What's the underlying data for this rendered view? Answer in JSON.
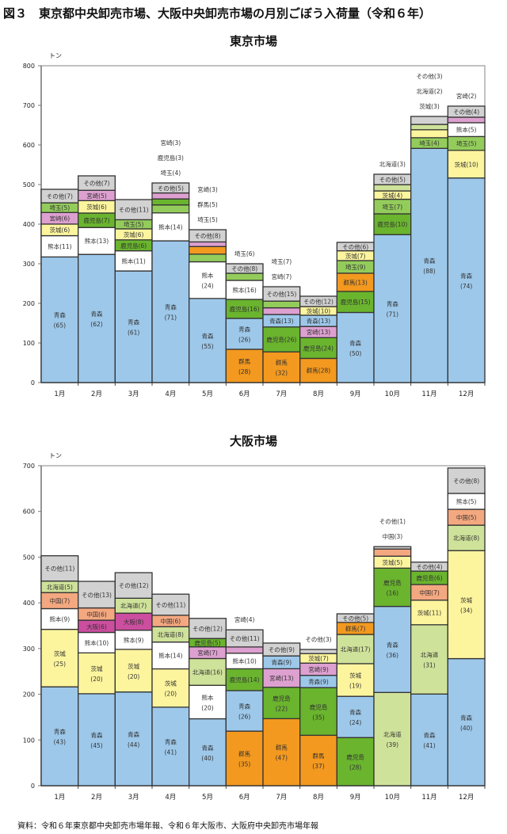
{
  "figure_title": "図３　東京都中央卸売市場、大阪中央卸売市場の月別ごぼう入荷量（令和６年）",
  "footer": "資料：令和６年東京都中央卸売市場年報、令和６年大阪市、大阪府中央卸売市場年報",
  "colors": {
    "青森": "#9dc8ea",
    "熊本": "#ffffff",
    "茨城": "#fdf59e",
    "宮崎": "#dda0d0",
    "埼玉": "#93cc5b",
    "鹿児島": "#6ab42e",
    "群馬": "#f3991f",
    "その他": "#d2d2d2",
    "北海道": "#cfe29a",
    "中国": "#f4a880",
    "大阪": "#cb4e9f"
  },
  "chart_data": [
    {
      "type": "bar",
      "stacked": true,
      "title": "東京市場",
      "ylabel": "トン",
      "ylim": [
        0,
        800
      ],
      "yticks": [
        0,
        100,
        200,
        300,
        400,
        500,
        600,
        700,
        800
      ],
      "grid": false,
      "note": "括弧内は構成比（％）",
      "categories": [
        "1月",
        "2月",
        "3月",
        "4月",
        "5月",
        "6月",
        "7月",
        "8月",
        "9月",
        "10月",
        "11月",
        "12月"
      ],
      "totals": [
        488,
        522,
        462,
        504,
        386,
        300,
        242,
        218,
        354,
        526,
        672,
        698
      ],
      "stacks": [
        [
          [
            "青森",
            65
          ],
          [
            "熊本",
            11
          ],
          [
            "茨城",
            6
          ],
          [
            "宮崎",
            6
          ],
          [
            "埼玉",
            5
          ],
          [
            "その他",
            7
          ]
        ],
        [
          [
            "青森",
            62
          ],
          [
            "熊本",
            13
          ],
          [
            "鹿児島",
            7
          ],
          [
            "茨城",
            6
          ],
          [
            "宮崎",
            5
          ],
          [
            "その他",
            7
          ]
        ],
        [
          [
            "青森",
            61
          ],
          [
            "熊本",
            11
          ],
          [
            "鹿児島",
            6
          ],
          [
            "茨城",
            6
          ],
          [
            "埼玉",
            5
          ],
          [
            "その他",
            11
          ]
        ],
        [
          [
            "青森",
            71
          ],
          [
            "熊本",
            14
          ],
          [
            "埼玉",
            4
          ],
          [
            "鹿児島",
            3
          ],
          [
            "宮崎",
            3
          ],
          [
            "その他",
            5
          ]
        ],
        [
          [
            "青森",
            55
          ],
          [
            "熊本",
            24
          ],
          [
            "埼玉",
            5
          ],
          [
            "群馬",
            5
          ],
          [
            "宮崎",
            3
          ],
          [
            "その他",
            8
          ]
        ],
        [
          [
            "群馬",
            28
          ],
          [
            "青森",
            26
          ],
          [
            "鹿児島",
            16
          ],
          [
            "熊本",
            16
          ],
          [
            "埼玉",
            6
          ],
          [
            "その他",
            8
          ]
        ],
        [
          [
            "群馬",
            32
          ],
          [
            "鹿児島",
            26
          ],
          [
            "青森",
            13
          ],
          [
            "宮崎",
            7
          ],
          [
            "埼玉",
            7
          ],
          [
            "その他",
            15
          ]
        ],
        [
          [
            "群馬",
            28
          ],
          [
            "鹿児島",
            24
          ],
          [
            "宮崎",
            13
          ],
          [
            "青森",
            13
          ],
          [
            "茨城",
            10
          ],
          [
            "その他",
            12
          ]
        ],
        [
          [
            "青森",
            50
          ],
          [
            "鹿児島",
            15
          ],
          [
            "群馬",
            13
          ],
          [
            "埼玉",
            9
          ],
          [
            "茨城",
            7
          ],
          [
            "その他",
            6
          ]
        ],
        [
          [
            "青森",
            71
          ],
          [
            "鹿児島",
            10
          ],
          [
            "埼玉",
            7
          ],
          [
            "茨城",
            4
          ],
          [
            "北海道",
            3
          ],
          [
            "その他",
            5
          ]
        ],
        [
          [
            "青森",
            88
          ],
          [
            "埼玉",
            4
          ],
          [
            "茨城",
            3
          ],
          [
            "北海道",
            2
          ],
          [
            "その他",
            3
          ]
        ],
        [
          [
            "青森",
            74
          ],
          [
            "茨城",
            10
          ],
          [
            "埼玉",
            5
          ],
          [
            "熊本",
            5
          ],
          [
            "宮崎",
            2
          ],
          [
            "その他",
            4
          ]
        ]
      ]
    },
    {
      "type": "bar",
      "stacked": true,
      "title": "大阪市場",
      "ylabel": "トン",
      "ylim": [
        0,
        700
      ],
      "yticks": [
        0,
        100,
        200,
        300,
        400,
        500,
        600,
        700
      ],
      "grid": false,
      "note": "括弧内は構成比（％）",
      "categories": [
        "1月",
        "2月",
        "3月",
        "4月",
        "5月",
        "6月",
        "7月",
        "8月",
        "9月",
        "10月",
        "11月",
        "12月"
      ],
      "totals": [
        503,
        447,
        466,
        419,
        366,
        341,
        312,
        298,
        376,
        523,
        489,
        695
      ],
      "stacks": [
        [
          [
            "青森",
            43
          ],
          [
            "茨城",
            25
          ],
          [
            "熊本",
            9
          ],
          [
            "中国",
            7
          ],
          [
            "北海道",
            5
          ],
          [
            "その他",
            11
          ]
        ],
        [
          [
            "青森",
            45
          ],
          [
            "茨城",
            20
          ],
          [
            "熊本",
            10
          ],
          [
            "大阪",
            6
          ],
          [
            "中国",
            6
          ],
          [
            "その他",
            13
          ]
        ],
        [
          [
            "青森",
            44
          ],
          [
            "茨城",
            20
          ],
          [
            "熊本",
            9
          ],
          [
            "大阪",
            8
          ],
          [
            "北海道",
            7
          ],
          [
            "その他",
            12
          ]
        ],
        [
          [
            "青森",
            41
          ],
          [
            "茨城",
            20
          ],
          [
            "熊本",
            14
          ],
          [
            "北海道",
            8
          ],
          [
            "中国",
            6
          ],
          [
            "その他",
            11
          ]
        ],
        [
          [
            "青森",
            40
          ],
          [
            "熊本",
            20
          ],
          [
            "北海道",
            16
          ],
          [
            "宮崎",
            7
          ],
          [
            "鹿児島",
            5
          ],
          [
            "その他",
            12
          ]
        ],
        [
          [
            "群馬",
            35
          ],
          [
            "青森",
            26
          ],
          [
            "鹿児島",
            14
          ],
          [
            "熊本",
            10
          ],
          [
            "宮崎",
            4
          ],
          [
            "その他",
            11
          ]
        ],
        [
          [
            "群馬",
            47
          ],
          [
            "鹿児島",
            22
          ],
          [
            "宮崎",
            13
          ],
          [
            "青森",
            9
          ],
          [
            "その他",
            9
          ]
        ],
        [
          [
            "群馬",
            37
          ],
          [
            "鹿児島",
            35
          ],
          [
            "青森",
            9
          ],
          [
            "宮崎",
            9
          ],
          [
            "茨城",
            7
          ],
          [
            "その他",
            3
          ]
        ],
        [
          [
            "鹿児島",
            28
          ],
          [
            "青森",
            24
          ],
          [
            "茨城",
            19
          ],
          [
            "北海道",
            17
          ],
          [
            "群馬",
            7
          ],
          [
            "その他",
            5
          ]
        ],
        [
          [
            "北海道",
            39
          ],
          [
            "青森",
            36
          ],
          [
            "鹿児島",
            16
          ],
          [
            "茨城",
            5
          ],
          [
            "中国",
            3
          ],
          [
            "その他",
            1
          ]
        ],
        [
          [
            "青森",
            41
          ],
          [
            "北海道",
            31
          ],
          [
            "茨城",
            11
          ],
          [
            "中国",
            7
          ],
          [
            "鹿児島",
            6
          ],
          [
            "その他",
            4
          ]
        ],
        [
          [
            "青森",
            40
          ],
          [
            "茨城",
            34
          ],
          [
            "北海道",
            8
          ],
          [
            "中国",
            5
          ],
          [
            "熊本",
            5
          ],
          [
            "その他",
            8
          ]
        ]
      ]
    }
  ]
}
